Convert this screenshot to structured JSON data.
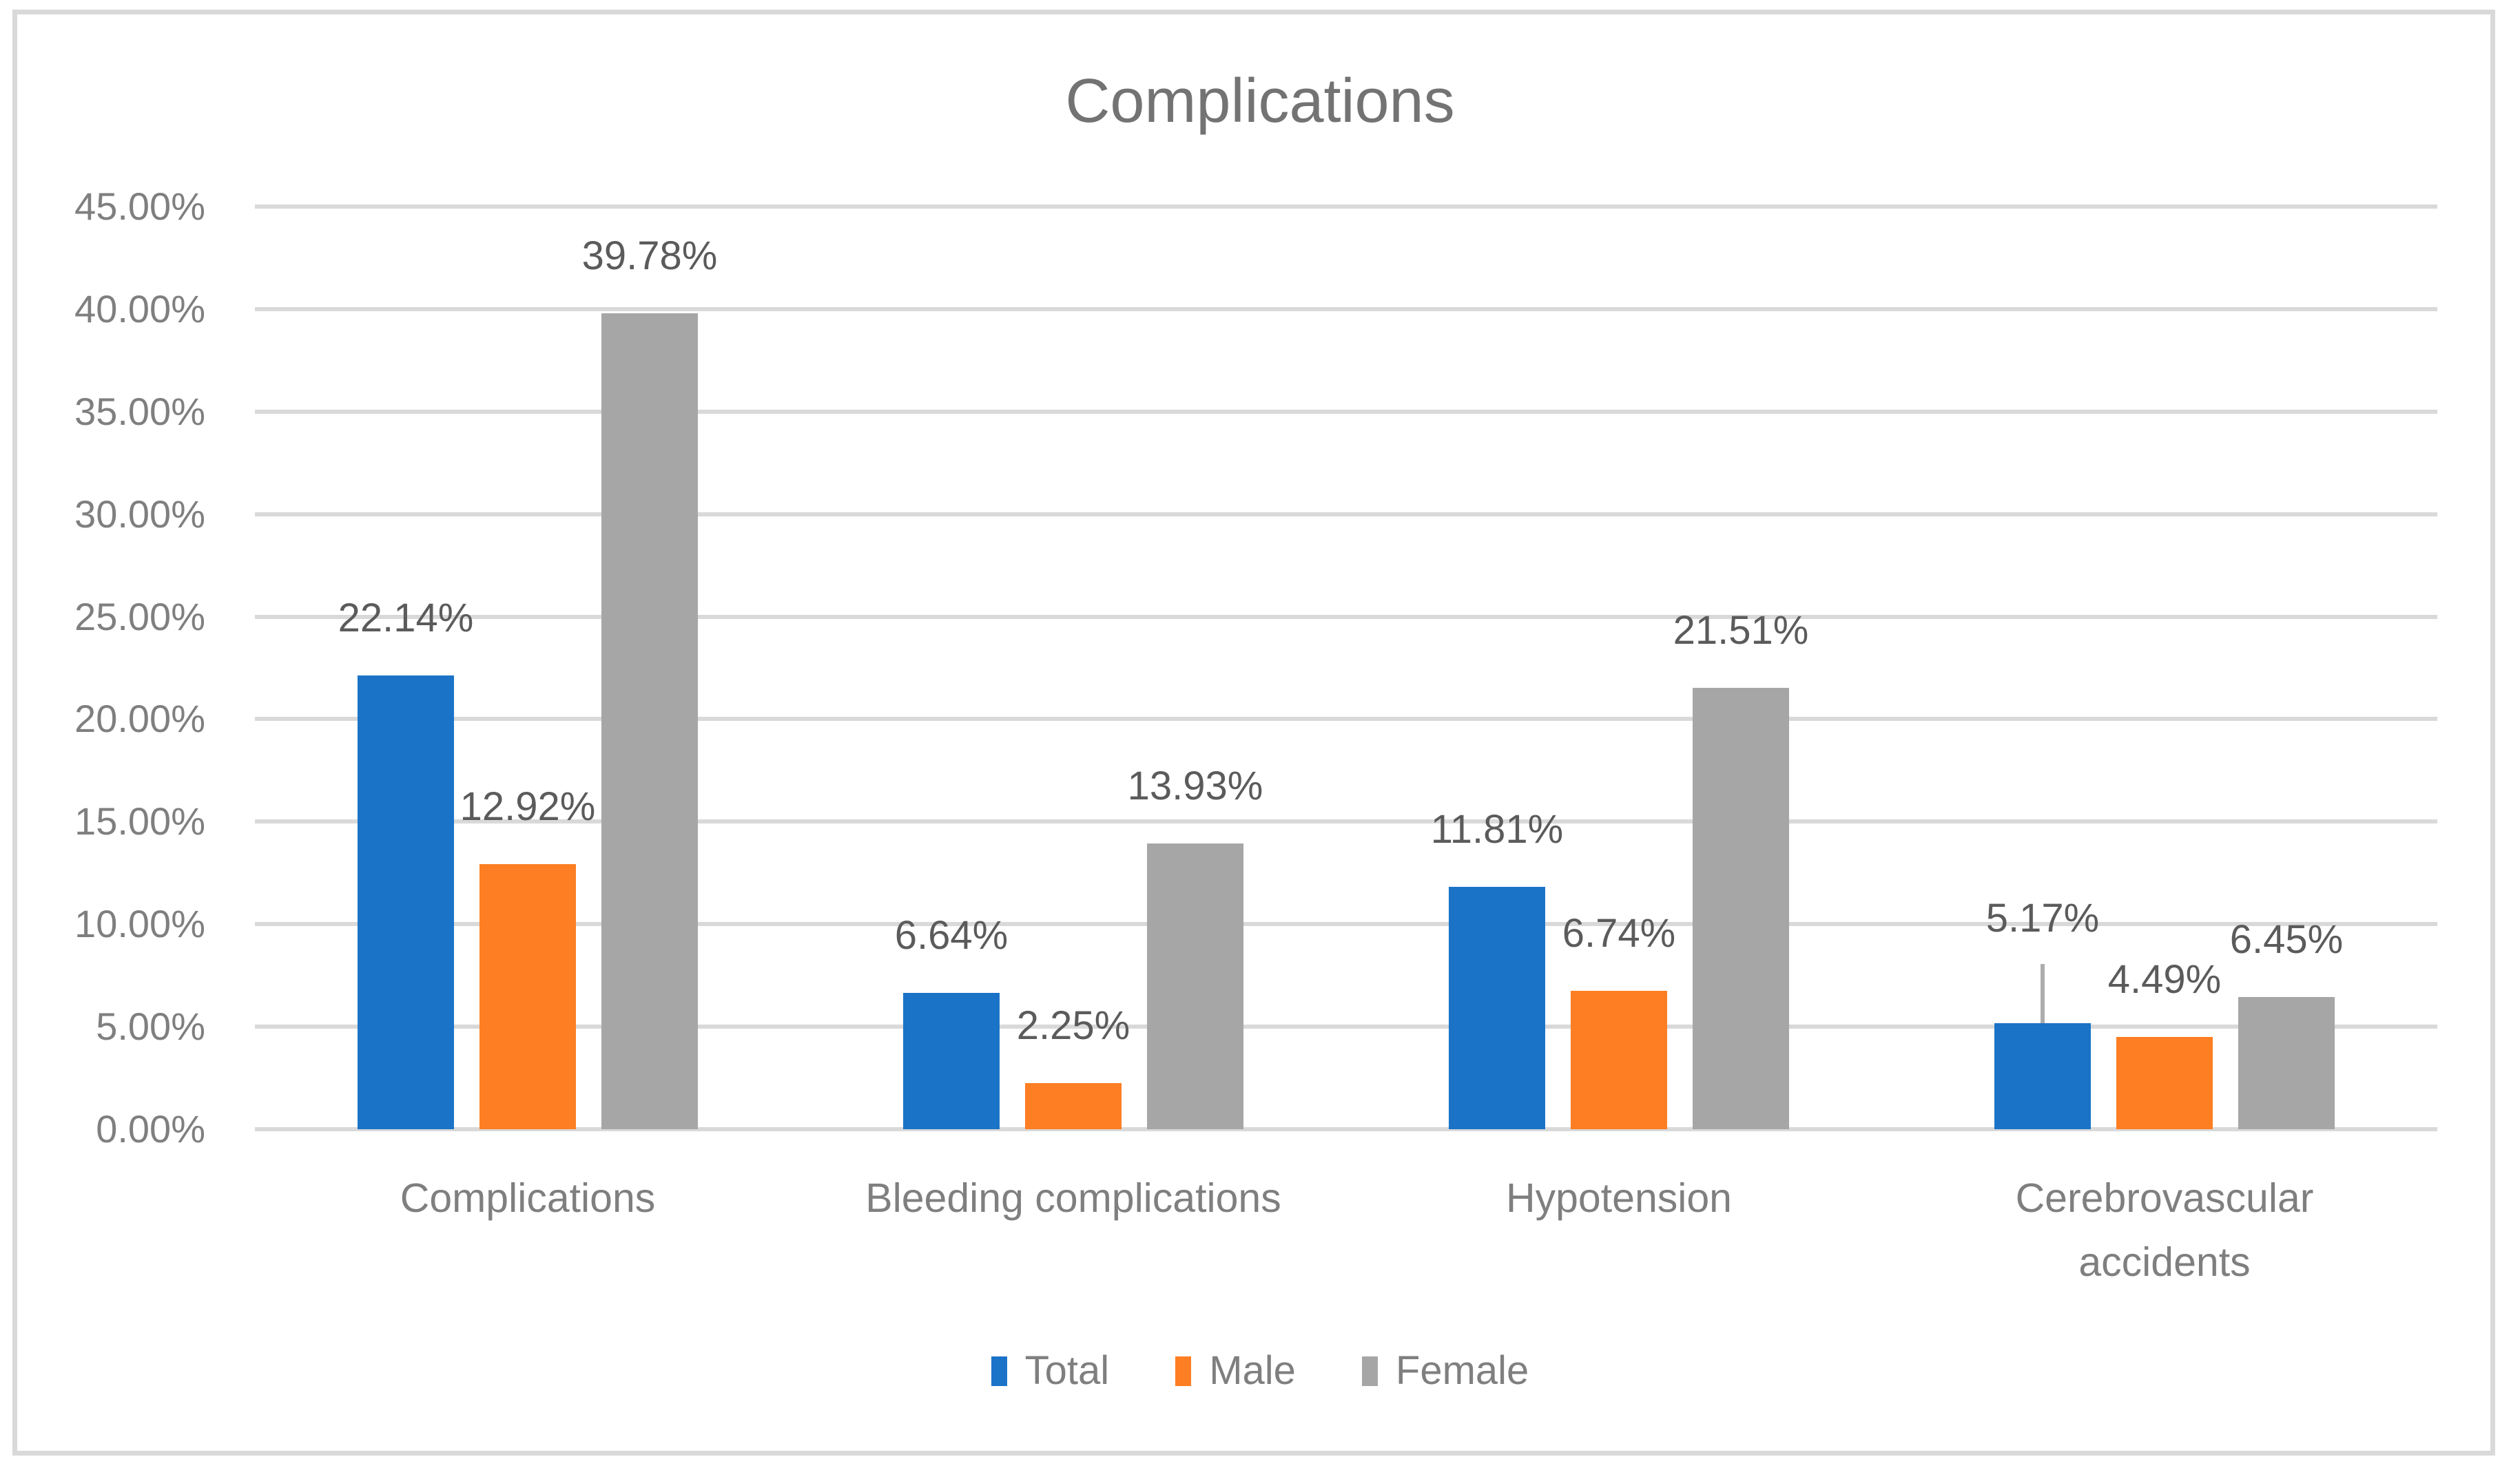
{
  "chart_data": {
    "type": "bar",
    "title": "Complications",
    "categories": [
      "Complications",
      "Bleeding complications",
      "Hypotension",
      "Cerebrovascular accidents"
    ],
    "series": [
      {
        "name": "Total",
        "color": "#1B73C8",
        "values": [
          22.14,
          6.64,
          11.81,
          5.17
        ],
        "labels": [
          "22.14%",
          "6.64%",
          "11.81%",
          "5.17%"
        ]
      },
      {
        "name": "Male",
        "color": "#FD7E23",
        "values": [
          12.92,
          2.25,
          6.74,
          4.49
        ],
        "labels": [
          "12.92%",
          "2.25%",
          "6.74%",
          "4.49%"
        ]
      },
      {
        "name": "Female",
        "color": "#A6A6A6",
        "values": [
          39.78,
          13.93,
          21.51,
          6.45
        ],
        "labels": [
          "39.78%",
          "13.93%",
          "21.51%",
          "6.45%"
        ]
      }
    ],
    "y_axis": {
      "ticks": [
        "45.00%",
        "40.00%",
        "35.00%",
        "30.00%",
        "25.00%",
        "20.00%",
        "15.00%",
        "10.00%",
        "5.00%",
        "0.00%"
      ],
      "min": 0,
      "max": 45,
      "step": 5
    },
    "grid": true,
    "gridline_color": "#D9D9D9",
    "axis_line_color": "#D9D9D9",
    "data_label_color": "#5B5B5B",
    "text_color": "#7F7F7F",
    "legend_position": "bottom",
    "label_layout": {
      "gap": 52,
      "special": [
        {
          "series_index": 0,
          "category_index": 3,
          "gap": 121,
          "leader_line": true
        }
      ]
    }
  }
}
